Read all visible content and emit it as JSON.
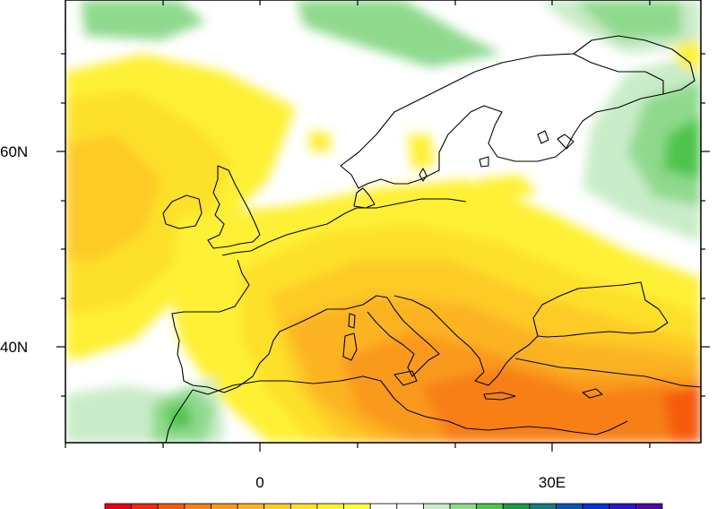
{
  "map": {
    "lat_labels": [
      "60N",
      "40N"
    ],
    "lon_labels": [
      "0",
      "30E"
    ]
  },
  "colorbar": {
    "colors": [
      "#e8001a",
      "#f02a0e",
      "#f55a10",
      "#f77f14",
      "#f99a1c",
      "#fbb321",
      "#fdca26",
      "#fde02c",
      "#fef035",
      "#fffe3e",
      "#ffffff",
      "#ffffff",
      "#c9ecc8",
      "#8fd98d",
      "#4ec44c",
      "#1e9a49",
      "#127f7d",
      "#0a57b5",
      "#0a33d6",
      "#2d14c8",
      "#4d0aa8"
    ]
  },
  "colors": {
    "land_outline": "#000000",
    "no_change": "#ffffff"
  }
}
